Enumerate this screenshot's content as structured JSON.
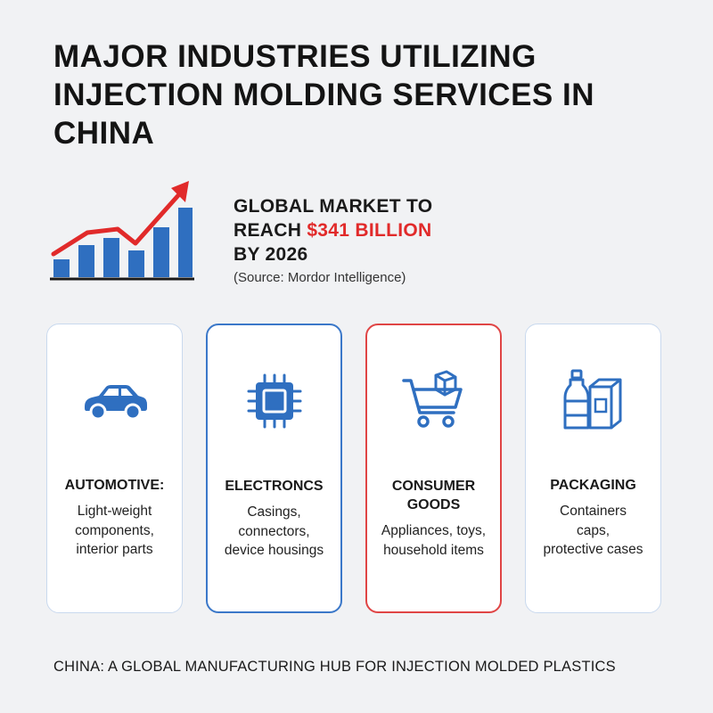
{
  "title_lines": [
    "MAJOR INDUSTRIES UTILIZING",
    "INJECTION MOLDING SERVICES IN",
    "CHINA"
  ],
  "market": {
    "line1": "GLOBAL MARKET TO",
    "line2_prefix": "REACH ",
    "line2_highlight": "$341 BILLION",
    "line3": "BY 2026",
    "source": "(Source: Mordor Intelligence)"
  },
  "cards": [
    {
      "heading": "AUTOMOTIVE:",
      "lines": [
        "Light-weight",
        "components,",
        "interior parts"
      ],
      "icon": "car-icon"
    },
    {
      "heading": "ELECTRONCS",
      "lines": [
        "Casings,",
        "connectors,",
        "device housings"
      ],
      "icon": "chip-icon"
    },
    {
      "heading_lines": [
        "CONSUMER",
        "GOODS"
      ],
      "lines": [
        "Appliances, toys,",
        "household items"
      ],
      "icon": "shopping-cart-icon"
    },
    {
      "heading": "PACKAGING",
      "lines": [
        "Containers",
        "caps,",
        "protective cases"
      ],
      "icon": "bottle-box-icon"
    }
  ],
  "footer": "CHINA: A GLOBAL MANUFACTURING HUB FOR INJECTION MOLDED PLASTICS",
  "colors": {
    "accent_red": "#e12a2a",
    "accent_blue": "#2f6fc0",
    "background": "#f1f2f4"
  }
}
